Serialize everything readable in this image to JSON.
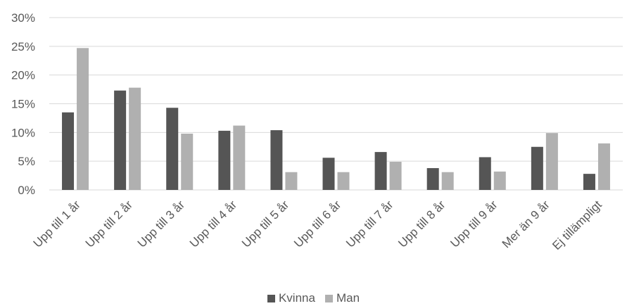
{
  "chart_data": {
    "type": "bar",
    "categories": [
      "Upp till 1 år",
      "Upp till 2 år",
      "Upp till 3 år",
      "Upp till 4 år",
      "Upp till 5 år",
      "Upp till 6 år",
      "Upp till 7 år",
      "Upp till 8 år",
      "Upp till 9 år",
      "Mer än 9 år",
      "Ej tillämpligt"
    ],
    "series": [
      {
        "name": "Kvinna",
        "color": "#555555",
        "values": [
          13.5,
          17.3,
          14.3,
          10.3,
          10.4,
          5.6,
          6.6,
          3.8,
          5.7,
          7.5,
          2.8
        ]
      },
      {
        "name": "Man",
        "color": "#b0b0b0",
        "values": [
          24.7,
          17.8,
          9.8,
          11.2,
          3.1,
          3.1,
          4.9,
          3.1,
          3.2,
          9.9,
          8.1
        ]
      }
    ],
    "ylim": [
      0,
      30
    ],
    "yticks": [
      "0%",
      "5%",
      "10%",
      "15%",
      "20%",
      "25%",
      "30%"
    ],
    "grid": true,
    "legend_position": "bottom"
  }
}
